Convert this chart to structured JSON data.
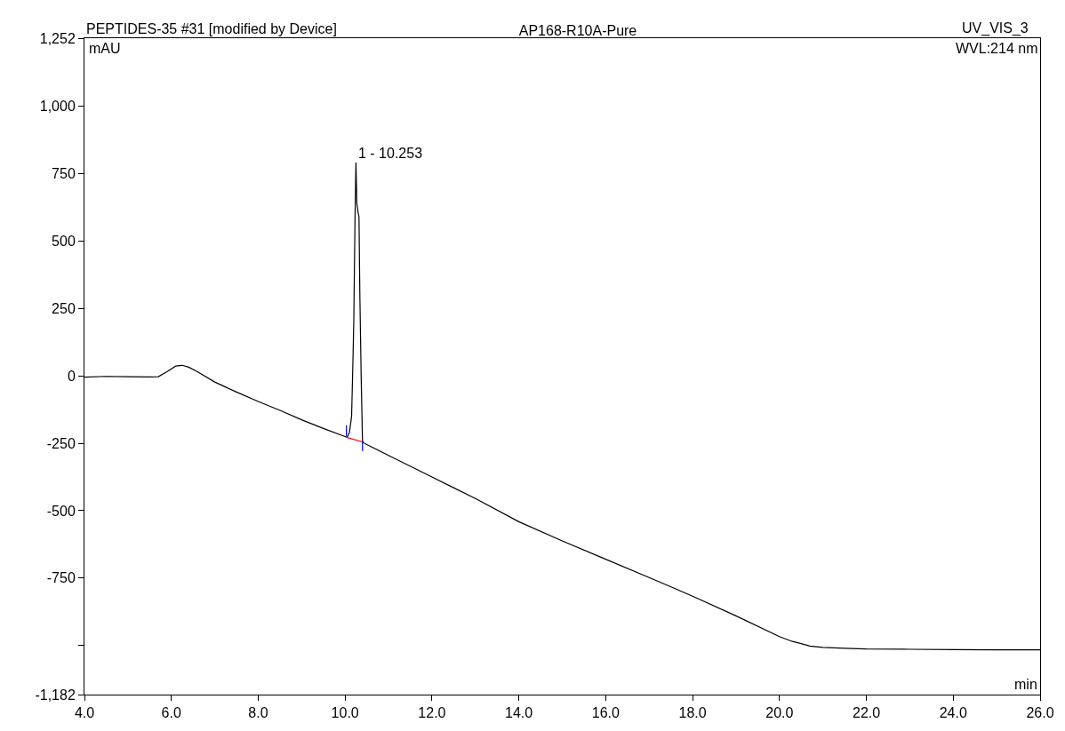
{
  "chart_data": {
    "type": "line",
    "title": "AP168-R10A-Pure",
    "xlabel": "min",
    "ylabel": "mAU",
    "annotations": [
      "PEPTIDES-35 #31 [modified by Device]",
      "UV_VIS_3",
      "WVL:214 nm",
      {
        "text": "1 - 10.253",
        "x": 10.253,
        "y": 791
      }
    ],
    "series": [
      {
        "color": "#000000",
        "x": [
          4.0,
          4.5,
          5.0,
          5.5,
          5.7,
          5.9,
          6.1,
          6.25,
          6.4,
          6.6,
          7.0,
          7.5,
          8.0,
          8.5,
          9.0,
          9.5,
          10.0,
          10.05,
          10.1,
          10.15,
          10.18,
          10.2,
          10.23,
          10.25,
          10.27,
          10.3,
          10.32,
          10.34,
          10.37,
          10.4,
          10.42,
          10.5,
          11.0,
          12.0,
          13.0,
          14.0,
          15.0,
          16.0,
          17.0,
          18.0,
          19.0,
          20.0,
          20.3,
          20.5,
          20.7,
          21.0,
          21.5,
          22.0,
          23.0,
          24.0,
          25.0,
          26.0
        ],
        "values": [
          -5,
          -2,
          -3,
          -4,
          -3,
          15,
          36,
          39,
          32,
          15,
          -23,
          -60,
          -95,
          -128,
          -163,
          -195,
          -225,
          -228,
          -210,
          -150,
          50,
          200,
          600,
          791,
          640,
          605,
          590,
          300,
          0,
          -240,
          -248,
          -255,
          -295,
          -375,
          -455,
          -541,
          -612,
          -680,
          -748,
          -817,
          -890,
          -967,
          -985,
          -993,
          -1002,
          -1007,
          -1010,
          -1013,
          -1014,
          -1015,
          -1016,
          -1016
        ]
      },
      {
        "color": "#ff0000",
        "x": [
          10.03,
          10.4
        ],
        "values": [
          -228,
          -245
        ]
      },
      {
        "color": "#0000ff",
        "x": [
          10.03,
          10.03
        ],
        "values": [
          -224,
          -183
        ]
      },
      {
        "color": "#0000ff",
        "x": [
          10.4,
          10.4
        ],
        "values": [
          -242,
          -279
        ]
      }
    ],
    "xlim": [
      4.0,
      26.0
    ],
    "xticks": [
      {
        "value": 4,
        "label": "4.0"
      },
      {
        "value": 6,
        "label": "6.0"
      },
      {
        "value": 8,
        "label": "8.0"
      },
      {
        "value": 10,
        "label": "10.0"
      },
      {
        "value": 12,
        "label": "12.0"
      },
      {
        "value": 14,
        "label": "14.0"
      },
      {
        "value": 16,
        "label": "16.0"
      },
      {
        "value": 18,
        "label": "18.0"
      },
      {
        "value": 20,
        "label": "20.0"
      },
      {
        "value": 22,
        "label": "22.0"
      },
      {
        "value": 24,
        "label": "24.0"
      },
      {
        "value": 26,
        "label": "26.0"
      }
    ],
    "ylim": [
      -1182,
      1252
    ],
    "yticks": [
      {
        "value": -1182,
        "label": "-1,182"
      },
      {
        "value": -1000,
        "label": null
      },
      -750,
      -500,
      -250,
      0,
      250,
      500,
      750,
      {
        "value": 1000,
        "label": "1,000"
      },
      {
        "value": 1252,
        "label": "1,252"
      }
    ],
    "marker": "none"
  }
}
